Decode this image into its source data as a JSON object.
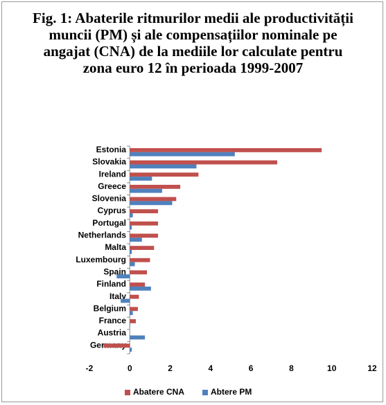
{
  "chart_data": {
    "type": "bar",
    "orientation": "horizontal",
    "title": "Fig. 1: Abaterile ritmurilor medii ale productivității muncii (PM) și ale compensațiilor nominale pe angajat (CNA) de la mediile lor calculate pentru zona euro 12 în perioada 1999-2007",
    "categories": [
      "Estonia",
      "Slovakia",
      "Ireland",
      "Greece",
      "Slovenia",
      "Cyprus",
      "Portugal",
      "Netherlands",
      "Malta",
      "Luxembourg",
      "Spain",
      "Finland",
      "Italy",
      "Belgium",
      "France",
      "Austria",
      "Germany"
    ],
    "series": [
      {
        "name": "Abatere CNA",
        "color": "#c0504d",
        "values": [
          9.5,
          7.3,
          3.4,
          2.5,
          2.3,
          1.4,
          1.4,
          1.4,
          1.2,
          1.0,
          0.85,
          0.75,
          0.45,
          0.4,
          0.3,
          0,
          -1.3
        ]
      },
      {
        "name": "Abtere PM",
        "color": "#4f81bd",
        "values": [
          5.2,
          3.3,
          1.1,
          1.6,
          2.1,
          0.15,
          0.1,
          0.6,
          0.1,
          0.25,
          -0.65,
          1.05,
          -0.45,
          0.15,
          0.02,
          0.75,
          0.1
        ]
      }
    ],
    "xlim": [
      -2,
      12
    ],
    "xticks": [
      -2,
      0,
      2,
      4,
      6,
      8,
      10,
      12
    ],
    "legend": "bottom"
  }
}
